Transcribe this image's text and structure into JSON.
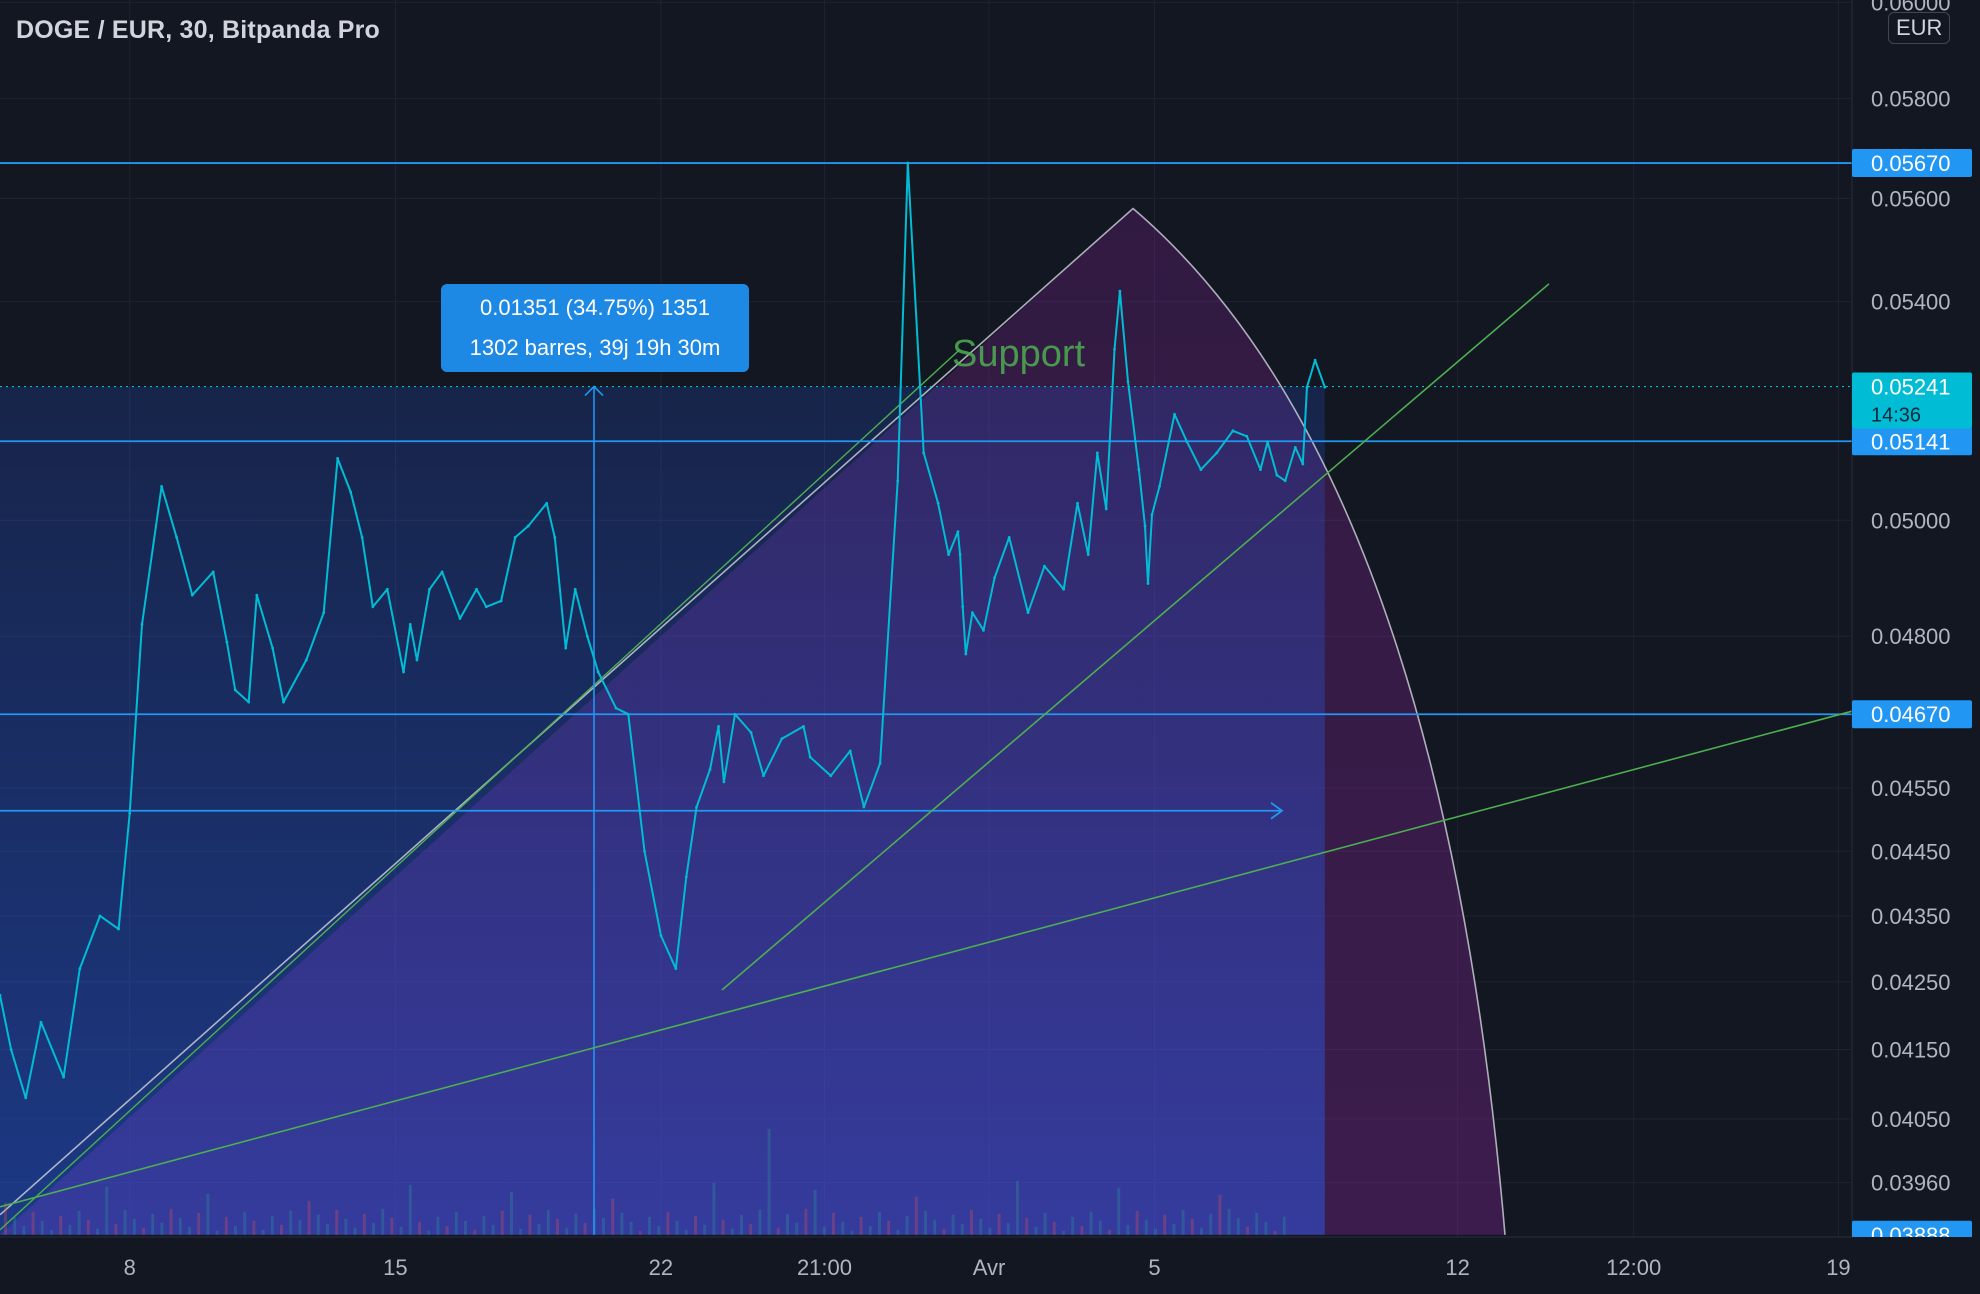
{
  "header": {
    "symbol_title": "DOGE / EUR, 30, Bitpanda Pro",
    "currency": "EUR"
  },
  "colors": {
    "background": "#131722",
    "grid": "#1f2330",
    "price_line": "#00bcd4",
    "level_line": "#2196f3",
    "trend_line": "#4caf50",
    "arc": "#d1d4dc",
    "measure_box": "#1e88e5",
    "fill_blue": "#2962ff",
    "fill_purple": "#9c27b0",
    "axis_text": "#b2b5be"
  },
  "measure": {
    "line1": "0.01351 (34.75%) 1351",
    "line2": "1302 barres, 39j 19h 30m"
  },
  "annotation": {
    "support": "Support"
  },
  "chart_data": {
    "type": "line",
    "title": "DOGE / EUR, 30, Bitpanda Pro",
    "currency": "EUR",
    "x_ticks": [
      {
        "label": "8",
        "x": 0.0655
      },
      {
        "label": "15",
        "x": 0.1997
      },
      {
        "label": "22",
        "x": 0.3338
      },
      {
        "label": "21:00",
        "x": 0.4164
      },
      {
        "label": "Avr",
        "x": 0.4995
      },
      {
        "label": "5",
        "x": 0.5831
      },
      {
        "label": "12",
        "x": 0.7362
      },
      {
        "label": "12:00",
        "x": 0.8251
      },
      {
        "label": "19",
        "x": 0.9285
      }
    ],
    "y_ticks": [
      0.06,
      0.058,
      0.056,
      0.054,
      0.05,
      0.048,
      0.0455,
      0.0445,
      0.0435,
      0.0425,
      0.0415,
      0.0405,
      0.0396
    ],
    "ylim": [
      0.03885,
      0.06005
    ],
    "y_scale": "log",
    "price_series": {
      "name": "DOGE/EUR",
      "x": [
        0.0,
        0.0056,
        0.013,
        0.0207,
        0.0321,
        0.0403,
        0.0505,
        0.0599,
        0.0655,
        0.0717,
        0.0816,
        0.0892,
        0.0971,
        0.1077,
        0.1146,
        0.1188,
        0.1256,
        0.1297,
        0.1377,
        0.1432,
        0.1547,
        0.1635,
        0.1705,
        0.1771,
        0.1829,
        0.1883,
        0.1956,
        0.2038,
        0.2072,
        0.2106,
        0.2169,
        0.2233,
        0.2323,
        0.2407,
        0.2456,
        0.2531,
        0.2602,
        0.2668,
        0.2761,
        0.2802,
        0.2857,
        0.2905,
        0.2966,
        0.3021,
        0.3111,
        0.3173,
        0.3255,
        0.3338,
        0.3413,
        0.3466,
        0.3518,
        0.3586,
        0.3629,
        0.3656,
        0.3712,
        0.3793,
        0.3856,
        0.3949,
        0.4058,
        0.4092,
        0.4196,
        0.4294,
        0.4363,
        0.4445,
        0.4534,
        0.4585,
        0.4665,
        0.4738,
        0.4791,
        0.4838,
        0.4849,
        0.4862,
        0.4878,
        0.4911,
        0.4967,
        0.5023,
        0.5097,
        0.5192,
        0.5275,
        0.5372,
        0.5442,
        0.5496,
        0.5542,
        0.5587,
        0.5629,
        0.5656,
        0.5697,
        0.5752,
        0.5783,
        0.5798,
        0.5818,
        0.5856,
        0.5932,
        0.5995,
        0.6065,
        0.6145,
        0.6227,
        0.6297,
        0.6366,
        0.6402,
        0.6449,
        0.6491,
        0.6542,
        0.658,
        0.6601,
        0.6642,
        0.6691
      ],
      "y": [
        0.0423,
        0.0415,
        0.0408,
        0.0419,
        0.0411,
        0.0427,
        0.0435,
        0.0433,
        0.0451,
        0.0482,
        0.0506,
        0.0497,
        0.0487,
        0.0491,
        0.0479,
        0.0471,
        0.0469,
        0.0487,
        0.0478,
        0.0469,
        0.0476,
        0.0484,
        0.0511,
        0.0505,
        0.0497,
        0.0485,
        0.0488,
        0.0474,
        0.0482,
        0.0476,
        0.0488,
        0.0491,
        0.0483,
        0.0488,
        0.0485,
        0.0486,
        0.0497,
        0.0499,
        0.0503,
        0.0497,
        0.0478,
        0.0488,
        0.048,
        0.0474,
        0.0468,
        0.0467,
        0.0445,
        0.0432,
        0.0427,
        0.0441,
        0.0452,
        0.0458,
        0.0465,
        0.0456,
        0.0467,
        0.0464,
        0.0457,
        0.0463,
        0.0465,
        0.046,
        0.0457,
        0.0461,
        0.0452,
        0.0459,
        0.0507,
        0.0567,
        0.0512,
        0.0503,
        0.0494,
        0.0498,
        0.0494,
        0.0485,
        0.0477,
        0.0484,
        0.0481,
        0.049,
        0.0497,
        0.0484,
        0.0492,
        0.0488,
        0.0503,
        0.0494,
        0.0512,
        0.0502,
        0.0531,
        0.0542,
        0.0525,
        0.0509,
        0.0499,
        0.0489,
        0.0501,
        0.0506,
        0.0519,
        0.0514,
        0.0509,
        0.0512,
        0.0516,
        0.0515,
        0.0509,
        0.0514,
        0.0508,
        0.0507,
        0.0513,
        0.051,
        0.0524,
        0.0529,
        0.0524
      ]
    },
    "levels": [
      {
        "price": 0.0567,
        "label": "0.05670"
      },
      {
        "price": 0.05141,
        "label": "0.05141"
      },
      {
        "price": 0.0467,
        "label": "0.04670"
      },
      {
        "price": 0.04514,
        "label": ""
      }
    ],
    "current_price": {
      "label": "0.05241",
      "countdown": "14:36",
      "price": 0.05241
    },
    "bottom_level": {
      "label": "0.03888",
      "price": 0.03888
    }
  }
}
